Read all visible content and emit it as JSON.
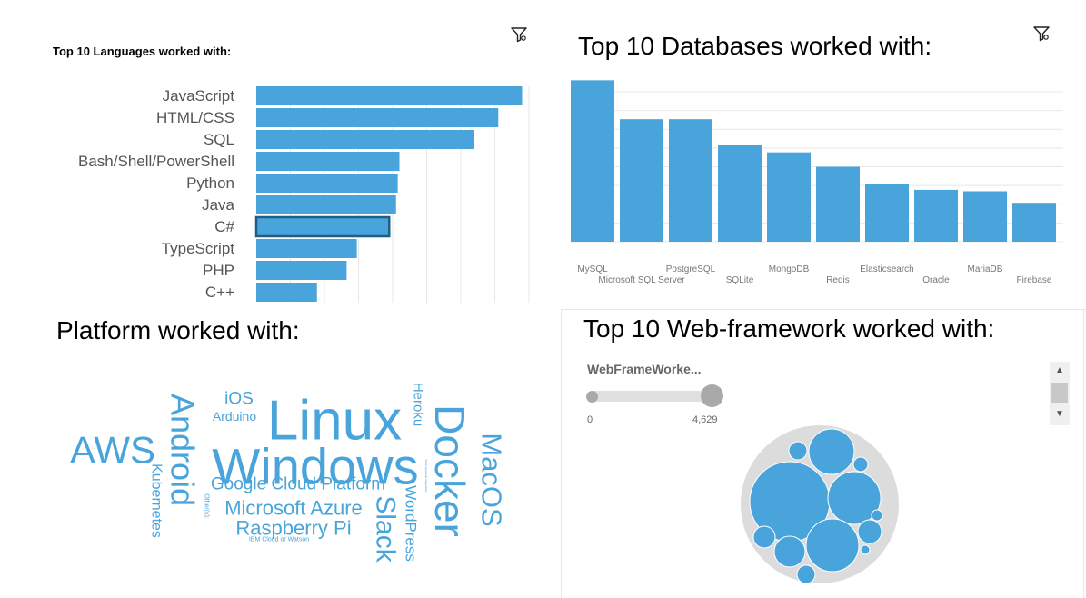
{
  "languages": {
    "title": "Top 10 Languages worked with:",
    "chart_data": {
      "type": "bar",
      "orientation": "horizontal",
      "categories": [
        "JavaScript",
        "HTML/CSS",
        "SQL",
        "Bash/Shell/PowerShell",
        "Python",
        "Java",
        "C#",
        "TypeScript",
        "PHP",
        "C++"
      ],
      "values": [
        7800,
        7100,
        6400,
        4200,
        4150,
        4100,
        3900,
        2950,
        2650,
        1780
      ],
      "xlim": [
        0,
        8400
      ],
      "grid": true,
      "highlight": "C#",
      "color": "#48a4da"
    }
  },
  "databases": {
    "title": "Top 10 Databases worked with:",
    "chart_data": {
      "type": "bar",
      "categories": [
        "MySQL",
        "Microsoft SQL Server",
        "PostgreSQL",
        "SQLite",
        "MongoDB",
        "Redis",
        "Elasticsearch",
        "Oracle",
        "MariaDB",
        "Firebase"
      ],
      "values": [
        5600,
        4250,
        4250,
        3350,
        3100,
        2600,
        2000,
        1800,
        1750,
        1350
      ],
      "ylim": [
        0,
        5800
      ],
      "grid": true,
      "color": "#48a4da"
    }
  },
  "platforms": {
    "title": "Platform worked with:",
    "words": [
      {
        "text": "Linux",
        "size": 62,
        "x": 368,
        "y": 463,
        "rotate": 0
      },
      {
        "text": "Windows",
        "size": 56,
        "x": 347,
        "y": 513,
        "rotate": 0
      },
      {
        "text": "Docker",
        "size": 46,
        "x": 495,
        "y": 518,
        "rotate": 90
      },
      {
        "text": "AWS",
        "size": 42,
        "x": 124,
        "y": 495,
        "rotate": 0
      },
      {
        "text": "Android",
        "size": 36,
        "x": 201,
        "y": 495,
        "rotate": 90
      },
      {
        "text": "MacOS",
        "size": 31,
        "x": 541,
        "y": 528,
        "rotate": 90
      },
      {
        "text": "Slack",
        "size": 30,
        "x": 424,
        "y": 582,
        "rotate": 90
      },
      {
        "text": "Microsoft Azure",
        "size": 22,
        "x": 323,
        "y": 559,
        "rotate": 0
      },
      {
        "text": "Raspberry Pi",
        "size": 22,
        "x": 323,
        "y": 581,
        "rotate": 0
      },
      {
        "text": "Google Cloud Platform",
        "size": 19,
        "x": 328,
        "y": 533,
        "rotate": 0
      },
      {
        "text": "WordPress",
        "size": 17,
        "x": 452,
        "y": 576,
        "rotate": 90
      },
      {
        "text": "iOS",
        "size": 19,
        "x": 263,
        "y": 439,
        "rotate": 0
      },
      {
        "text": "Kubernetes",
        "size": 16,
        "x": 172,
        "y": 551,
        "rotate": 90
      },
      {
        "text": "Arduino",
        "size": 14,
        "x": 258,
        "y": 458,
        "rotate": 0
      },
      {
        "text": "Heroku",
        "size": 15,
        "x": 460,
        "y": 445,
        "rotate": 90
      },
      {
        "text": "Other(s):",
        "size": 7,
        "x": 227,
        "y": 557,
        "rotate": 90
      },
      {
        "text": "IBM Cloud or Watson",
        "size": 7,
        "x": 307,
        "y": 594,
        "rotate": 0
      },
      {
        "text": "Slack Apps and Integrations",
        "size": 3,
        "x": 469,
        "y": 524,
        "rotate": 90
      }
    ],
    "color": "#48a4da"
  },
  "webframeworks": {
    "title": "Top 10 Web-framework worked with:",
    "slider": {
      "label": "WebFrameWorke...",
      "min": "0",
      "max": "4,629"
    },
    "color": "#48a4da",
    "enclosure_color": "#dcdcdc"
  },
  "icons": {
    "filter": "filter-icon",
    "scroll_up": "▲",
    "scroll_down": "▼"
  }
}
